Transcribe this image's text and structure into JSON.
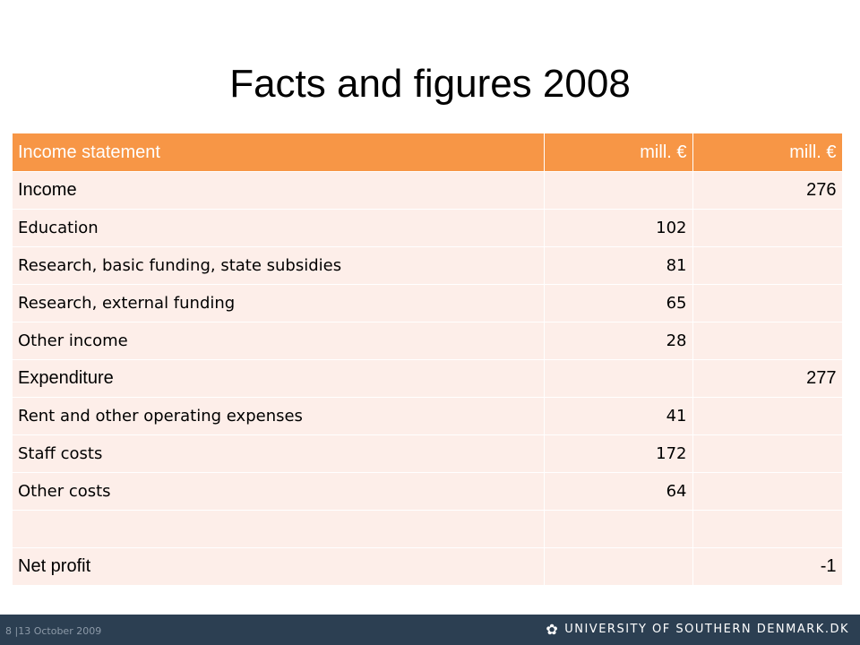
{
  "slide": {
    "title": "Facts and figures 2008"
  },
  "table": {
    "headers": [
      "Income statement",
      "mill. €",
      "mill. €"
    ],
    "rows": [
      {
        "label": "Income",
        "col1": "",
        "col2": "276",
        "heading": true
      },
      {
        "label": "Education",
        "col1": "102",
        "col2": "",
        "heading": false
      },
      {
        "label": "Research, basic funding, state subsidies",
        "col1": "81",
        "col2": "",
        "heading": false
      },
      {
        "label": "Research, external funding",
        "col1": "65",
        "col2": "",
        "heading": false
      },
      {
        "label": "Other income",
        "col1": "28",
        "col2": "",
        "heading": false
      },
      {
        "label": "Expenditure",
        "col1": "",
        "col2": "277",
        "heading": true
      },
      {
        "label": "Rent and other operating expenses",
        "col1": "41",
        "col2": "",
        "heading": false
      },
      {
        "label": "Staff costs",
        "col1": "172",
        "col2": "",
        "heading": false
      },
      {
        "label": "Other costs",
        "col1": "64",
        "col2": "",
        "heading": false
      },
      {
        "label": "",
        "col1": "",
        "col2": "",
        "heading": false
      },
      {
        "label": "Net profit",
        "col1": "",
        "col2": "-1",
        "heading": true
      }
    ]
  },
  "footer": {
    "date": "8 |13   October 2009",
    "brand": "UNIVERSITY OF SOUTHERN DENMARK.DK",
    "icon": "flower-logo-icon"
  },
  "colors": {
    "header_bg": "#f79646",
    "row_bg": "#fdeee9",
    "footer_bg": "#2c3f52"
  }
}
